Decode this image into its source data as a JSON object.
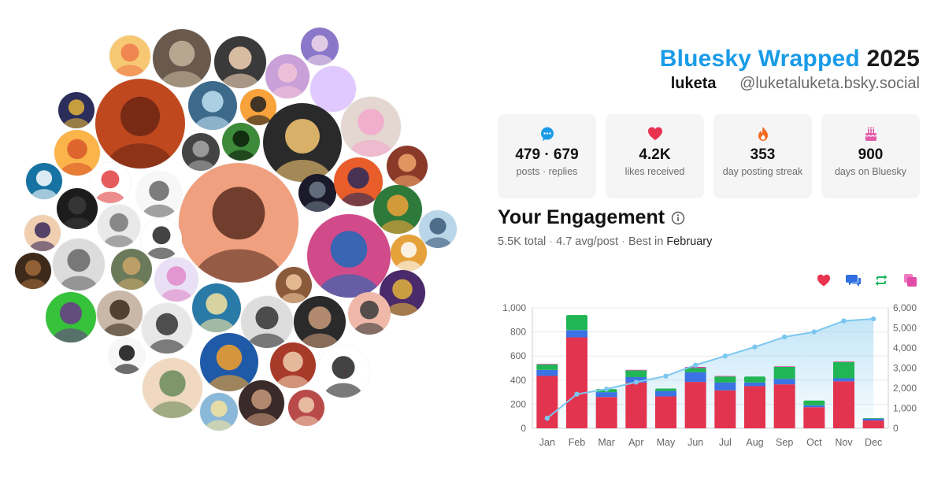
{
  "header": {
    "brand": "Bluesky Wrapped",
    "year": "2025",
    "display_name": "luketa",
    "handle": "@luketaluketa.bsky.social"
  },
  "stats": [
    {
      "icon": "speech-bubble-icon",
      "value": "479 · 679",
      "label": "posts · replies",
      "color": "#1a9be8"
    },
    {
      "icon": "heart-icon",
      "value": "4.2K",
      "label": "likes received",
      "color": "#e8334f"
    },
    {
      "icon": "flame-icon",
      "value": "353",
      "label": "day posting streak",
      "color": "#f36b21"
    },
    {
      "icon": "cake-icon",
      "value": "900",
      "label": "days on Bluesky",
      "color": "#e25aa9"
    }
  ],
  "engagement": {
    "title": "Your Engagement",
    "total": "5.5K total",
    "avg": "4.7 avg/post",
    "best_prefix": "Best in",
    "best_month": "February"
  },
  "legend": [
    {
      "icon": "heart-icon",
      "color": "#e8334f"
    },
    {
      "icon": "reply-icon",
      "color": "#2f6fe0"
    },
    {
      "icon": "repost-icon",
      "color": "#17b559"
    },
    {
      "icon": "quote-icon",
      "color": "#e04ca6"
    }
  ],
  "colors": {
    "likes": "#e3344f",
    "replies": "#3b72e4",
    "reposts": "#22b555",
    "quotes": "#d94aa8",
    "cumulative": "#7cc7ef"
  },
  "chart_data": {
    "type": "bar",
    "categories": [
      "Jan",
      "Feb",
      "Mar",
      "Apr",
      "May",
      "Jun",
      "Jul",
      "Aug",
      "Sep",
      "Oct",
      "Nov",
      "Dec"
    ],
    "series": [
      {
        "values": [
          435,
          755,
          260,
          380,
          265,
          385,
          315,
          350,
          365,
          175,
          390,
          65
        ]
      },
      {
        "values": [
          50,
          60,
          40,
          45,
          45,
          80,
          65,
          30,
          45,
          15,
          25,
          15
        ]
      },
      {
        "values": [
          45,
          125,
          25,
          55,
          20,
          35,
          50,
          50,
          100,
          40,
          135,
          5
        ]
      },
      {
        "values": [
          5,
          0,
          0,
          5,
          0,
          10,
          5,
          0,
          5,
          0,
          5,
          0
        ]
      }
    ],
    "cumulative": [
      500,
      1700,
      1950,
      2300,
      2600,
      3150,
      3600,
      4050,
      4550,
      4800,
      5350,
      5450
    ],
    "ylim": [
      0,
      1000
    ],
    "y2lim": [
      0,
      6000
    ],
    "yticks": [
      "0",
      "200",
      "400",
      "600",
      "800",
      "1,000"
    ],
    "y2ticks": [
      "0",
      "1,000",
      "2,000",
      "3,000",
      "4,000",
      "5,000",
      "6,000"
    ]
  },
  "avatars": [
    {
      "bg": "#f7c873",
      "fg": "#ef7a4c"
    },
    {
      "bg": "#6a5a4e",
      "fg": "#c5b59c"
    },
    {
      "bg": "#3a3a3a",
      "fg": "#f4d3b5"
    },
    {
      "bg": "#8a77c9",
      "fg": "#f0d9e9"
    },
    {
      "bg": "#c9a0d8",
      "fg": "#f3c3d8"
    },
    {
      "bg": "#e0c9ff",
      "fg": "#e0c9ff"
    },
    {
      "bg": "#2b2e5a",
      "fg": "#e2b23b"
    },
    {
      "bg": "#c0481e",
      "fg": "#6b2614"
    },
    {
      "bg": "#3d6a8a",
      "fg": "#bfe2f2"
    },
    {
      "bg": "#f7a23a",
      "fg": "#222"
    },
    {
      "bg": "#2a2a2a",
      "fg": "#f7c873"
    },
    {
      "bg": "#e4d6d0",
      "fg": "#f3a7cd"
    },
    {
      "bg": "#444",
      "fg": "#a8a8a8"
    },
    {
      "bg": "#3d8a3a",
      "fg": "#0b1d0b"
    },
    {
      "bg": "#8b3a2a",
      "fg": "#f0a46a"
    },
    {
      "bg": "#fbb44a",
      "fg": "#d9572a"
    },
    {
      "bg": "#fff",
      "fg": "#e03f3f"
    },
    {
      "bg": "#f7f7f7",
      "fg": "#666"
    },
    {
      "bg": "#f0a07e",
      "fg": "#5a2d20"
    },
    {
      "bg": "#1a1a2a",
      "fg": "#6e7a8a"
    },
    {
      "bg": "#e85d2a",
      "fg": "#2c2a5a"
    },
    {
      "bg": "#1673a3",
      "fg": "#ffffff"
    },
    {
      "bg": "#1c1c1c",
      "fg": "#3a3a3a"
    },
    {
      "bg": "#e9e9e9",
      "fg": "#777"
    },
    {
      "bg": "#d14a8a",
      "fg": "#1e6ab8"
    },
    {
      "bg": "#2d7a3a",
      "fg": "#f0a13a"
    },
    {
      "bg": "#b9d5e8",
      "fg": "#3a5a7a"
    },
    {
      "bg": "#f0cfb0",
      "fg": "#3a2a5a"
    },
    {
      "bg": "#dcdcdc",
      "fg": "#666"
    },
    {
      "bg": "#ffffff",
      "fg": "#222"
    },
    {
      "bg": "#6a7a5a",
      "fg": "#c9a66a"
    },
    {
      "bg": "#eae0f6",
      "fg": "#e089c9"
    },
    {
      "bg": "#e6a23a",
      "fg": "#fff"
    },
    {
      "bg": "#8a5a3a",
      "fg": "#f2c8a0"
    },
    {
      "bg": "#3d2a1a",
      "fg": "#a06a3a"
    },
    {
      "bg": "#4a2a6a",
      "fg": "#e2b23b"
    },
    {
      "bg": "#36c23a",
      "fg": "#6a3a8a"
    },
    {
      "bg": "#c9b8a8",
      "fg": "#3a2a1a"
    },
    {
      "bg": "#2a7aa8",
      "fg": "#f4e3a0"
    },
    {
      "bg": "#ddd",
      "fg": "#333"
    },
    {
      "bg": "#2a2a2a",
      "fg": "#c89a7a"
    },
    {
      "bg": "#f0b8a8",
      "fg": "#3a3a3a"
    },
    {
      "bg": "#e7e7e7",
      "fg": "#333"
    },
    {
      "bg": "#a83a2a",
      "fg": "#f0cfb0"
    },
    {
      "bg": "#ffffff",
      "fg": "#222"
    },
    {
      "bg": "#1e5aa8",
      "fg": "#f4a02a"
    },
    {
      "bg": "#f7f7f7",
      "fg": "#111"
    },
    {
      "bg": "#3a2a2a",
      "fg": "#c89a7a"
    },
    {
      "bg": "#f0d9c0",
      "fg": "#6a8a5a"
    },
    {
      "bg": "#8ab8d8",
      "fg": "#f4e3a0"
    },
    {
      "bg": "#b84a4a",
      "fg": "#f0cfb0"
    },
    {
      "bg": "#a82a2a",
      "fg": "#111"
    },
    {
      "bg": "#5a4a3a",
      "fg": "#d9b8a0"
    }
  ]
}
